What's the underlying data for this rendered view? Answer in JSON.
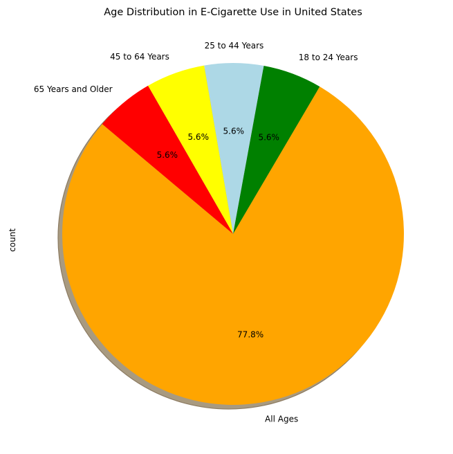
{
  "chart_data": {
    "type": "pie",
    "title": "Age Distribution in E-Cigarette Use in United States",
    "ylabel": "count",
    "start_angle_deg": 140,
    "counterclockwise": true,
    "shadow": true,
    "slices": [
      {
        "label": "All Ages",
        "percent": 77.8,
        "pct_label": "77.8%",
        "color": "#FFA500"
      },
      {
        "label": "18 to 24 Years",
        "percent": 5.6,
        "pct_label": "5.6%",
        "color": "#008000"
      },
      {
        "label": "25 to 44 Years",
        "percent": 5.6,
        "pct_label": "5.6%",
        "color": "#ADD8E6"
      },
      {
        "label": "45 to 64 Years",
        "percent": 5.6,
        "pct_label": "5.6%",
        "color": "#FFFF00"
      },
      {
        "label": "65 Years and Older",
        "percent": 5.6,
        "pct_label": "5.6%",
        "color": "#FF0000"
      }
    ]
  }
}
